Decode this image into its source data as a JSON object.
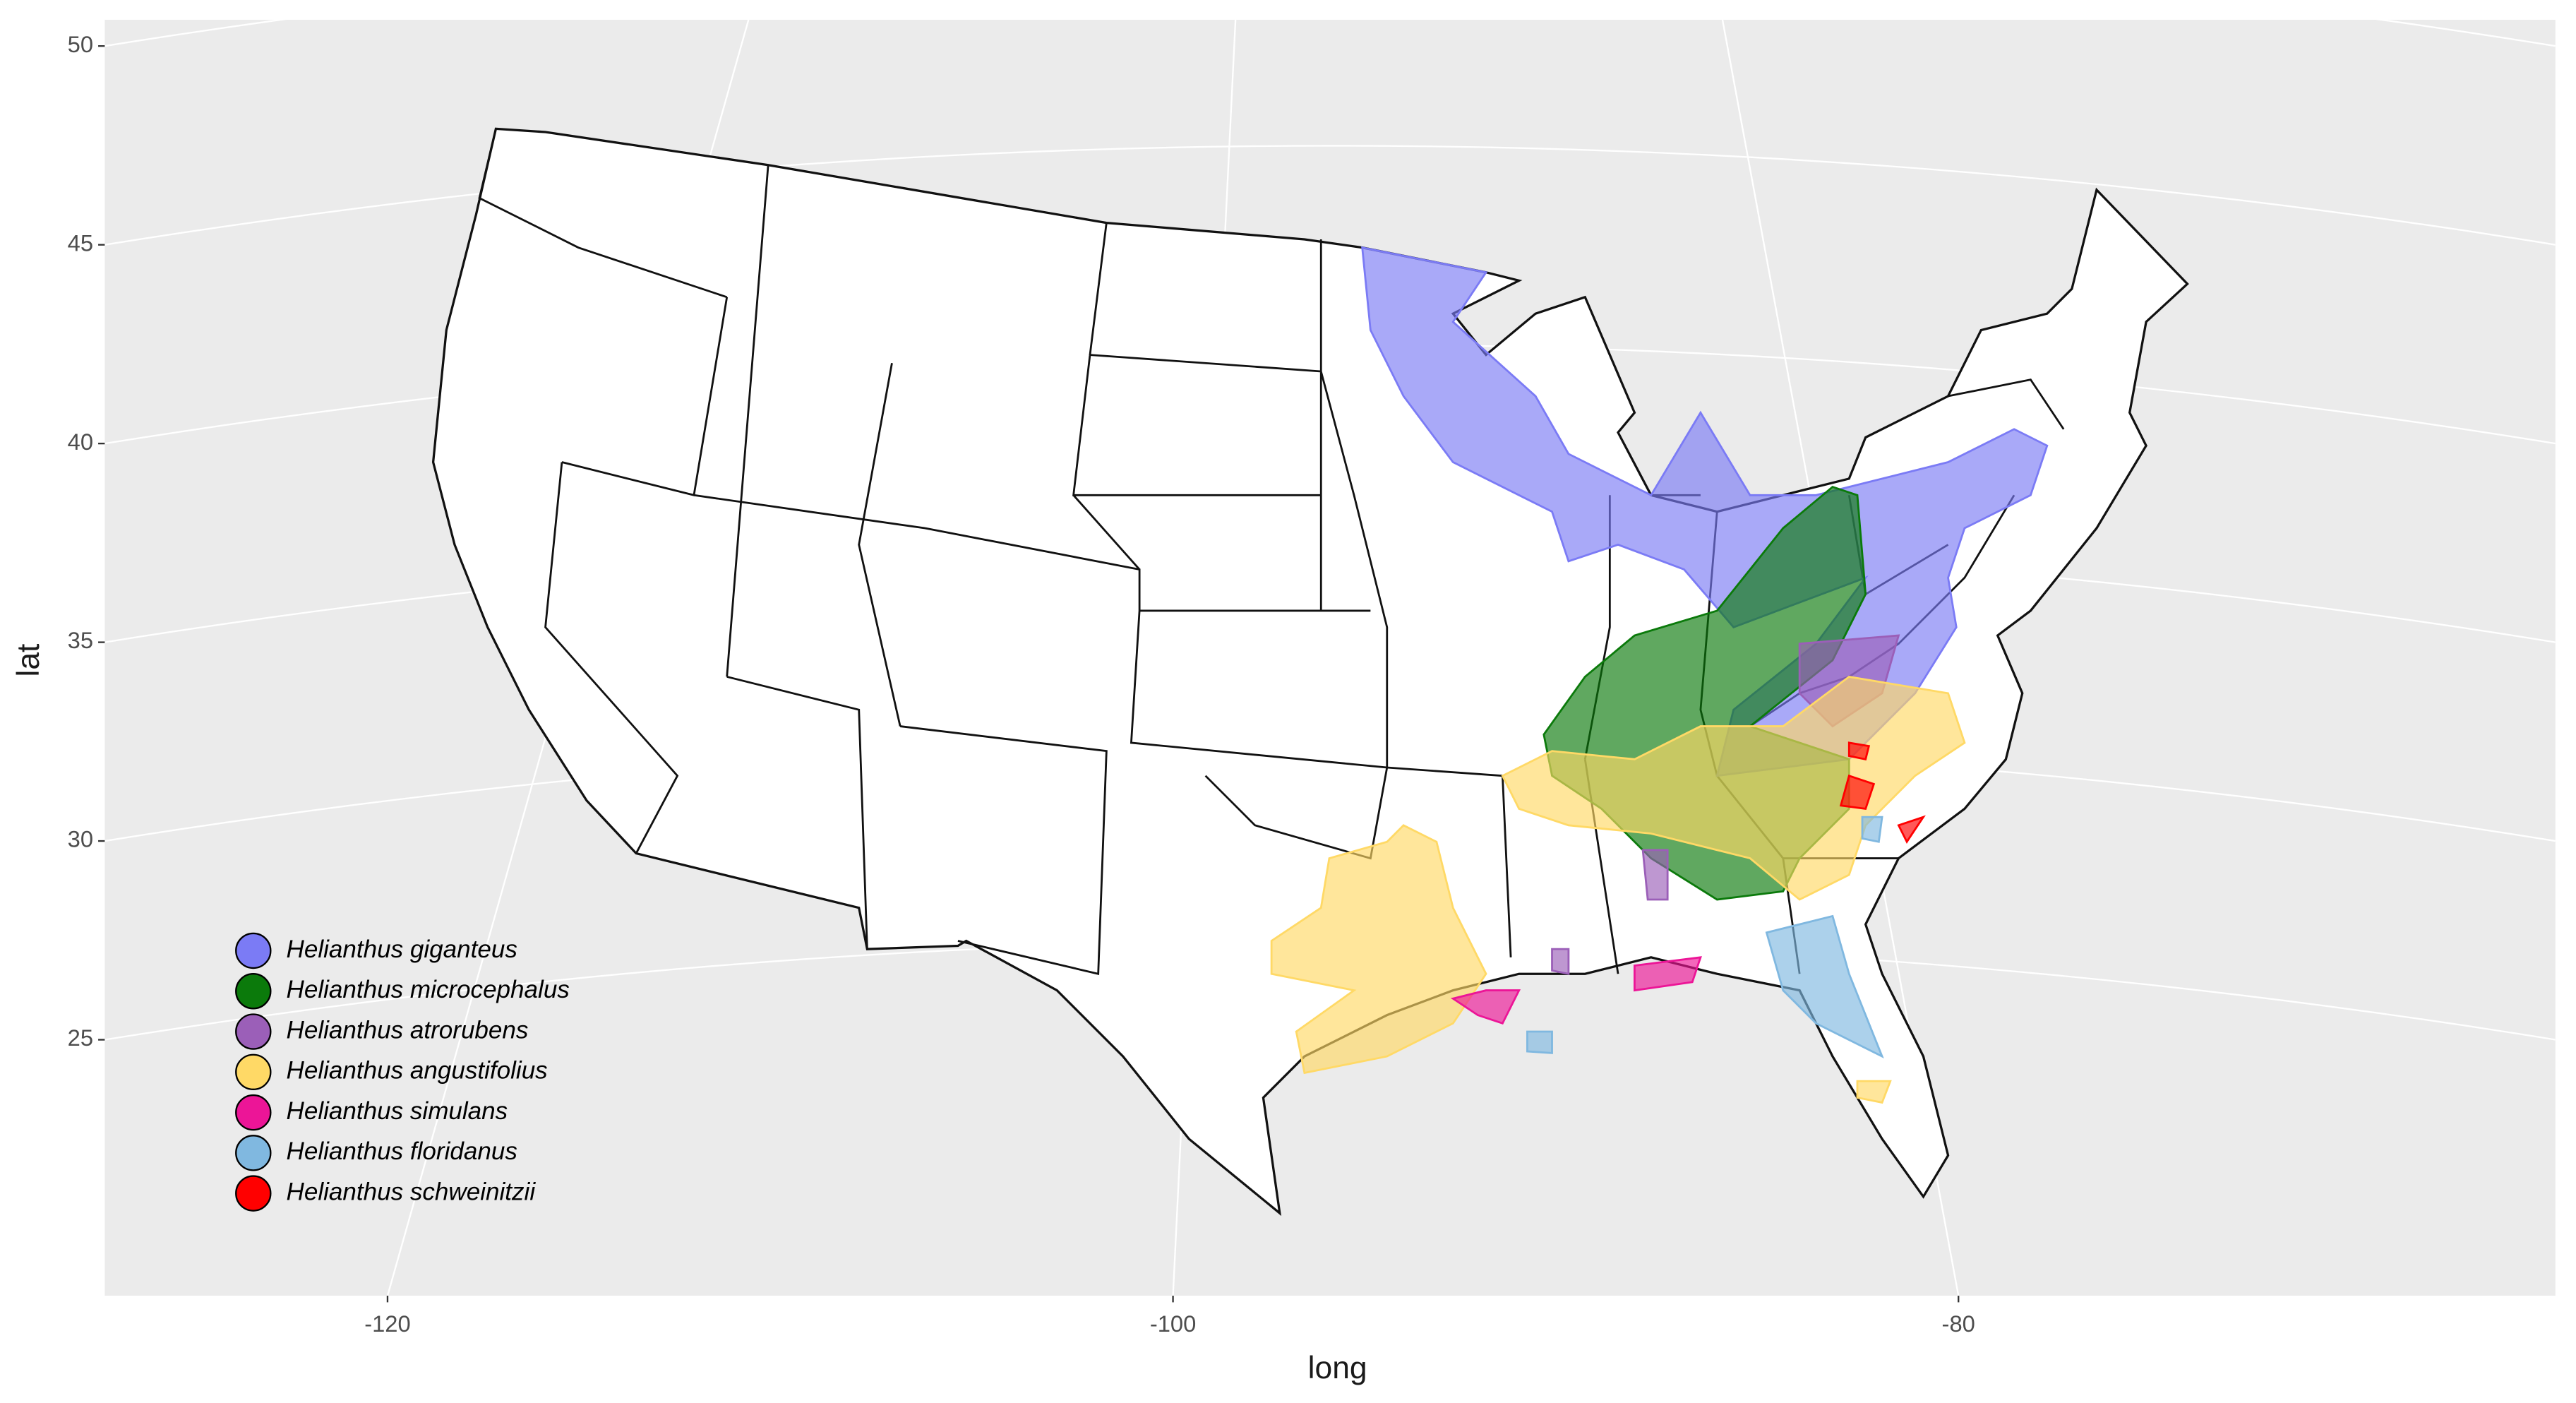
{
  "chart_data": {
    "type": "map",
    "xlabel": "long",
    "ylabel": "lat",
    "xlim": [
      -127.2,
      -64.8
    ],
    "ylim": [
      18.56,
      50.66
    ],
    "xticks": [
      -120,
      -100,
      -80
    ],
    "yticks": [
      25,
      30,
      35,
      40,
      45,
      50
    ],
    "grid": true,
    "legend_position": "bottom-left",
    "series": [
      {
        "name": "Helianthus giganteus",
        "color": "#7b7bf5"
      },
      {
        "name": "Helianthus microcephalus",
        "color": "#0b7a0b"
      },
      {
        "name": "Helianthus atrorubens",
        "color": "#9b5fb8"
      },
      {
        "name": "Helianthus angustifolius",
        "color": "#ffd966"
      },
      {
        "name": "Helianthus simulans",
        "color": "#ec1597"
      },
      {
        "name": "Helianthus floridanus",
        "color": "#80b8e0"
      },
      {
        "name": "Helianthus schweinitzii",
        "color": "#ff0000"
      }
    ]
  }
}
